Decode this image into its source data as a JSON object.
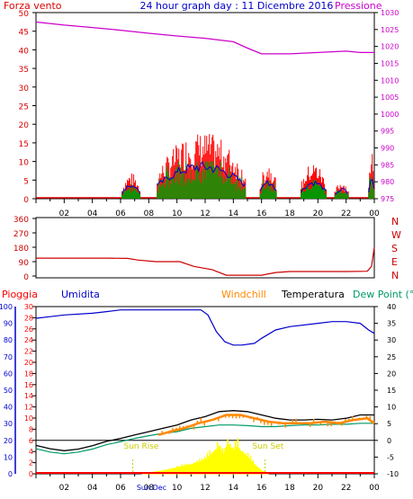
{
  "title": "24 hour graph day : 11 Dicembre 2016",
  "colors": {
    "wind": "#dd0000",
    "gust": "#ff0000",
    "wind_green": "#009900",
    "wind_blue": "#0000cc",
    "pressure": "#cc00cc",
    "direction": "#cc0000",
    "humidity": "#0000cc",
    "windchill": "#ff8800",
    "temperature": "#000000",
    "dewpoint": "#009966",
    "rain": "#ff0000",
    "solar": "#ffff00",
    "sun_label": "#cccc00",
    "grid": "#cccccc",
    "frame": "#000000"
  },
  "x_ticks": [
    "02",
    "04",
    "06",
    "08",
    "10",
    "12",
    "14",
    "16",
    "18",
    "20",
    "22",
    "00"
  ],
  "x_date_label": "Sun Dec",
  "chart_data": [
    {
      "type": "bar",
      "name": "wind",
      "legend_left": "Forza vento",
      "legend_right": "Pressione",
      "y_left_ticks": [
        "50",
        "45",
        "40",
        "35",
        "30",
        "25",
        "20",
        "15",
        "10",
        "5",
        "0"
      ],
      "y_right_ticks": [
        "1030",
        "1025",
        "1020",
        "1015",
        "1010",
        "1005",
        "1000",
        "995",
        "990",
        "985",
        "980",
        "975"
      ],
      "y_left_range": [
        0,
        50
      ],
      "y_right_range": [
        975,
        1030
      ],
      "pressure": {
        "x_hours": [
          0,
          2,
          4,
          6,
          8,
          10,
          12,
          14,
          15,
          16,
          18,
          20,
          22,
          23,
          24
        ],
        "values": [
          1027.2,
          1026.3,
          1025.6,
          1024.8,
          1023.9,
          1023.1,
          1022.4,
          1021.4,
          1019.5,
          1017.8,
          1017.8,
          1018.2,
          1018.6,
          1018.2,
          1018.2
        ]
      },
      "wind_segments": [
        {
          "start": 6.1,
          "end": 7.4,
          "gust_max": 7,
          "avg_max": 4
        },
        {
          "start": 8.6,
          "end": 14.9,
          "gust_max": 18,
          "avg_max": 10
        },
        {
          "start": 15.9,
          "end": 17.1,
          "gust_max": 10,
          "avg_max": 5
        },
        {
          "start": 18.8,
          "end": 20.6,
          "gust_max": 10,
          "avg_max": 5
        },
        {
          "start": 21.2,
          "end": 22.2,
          "gust_max": 5,
          "avg_max": 3
        },
        {
          "start": 23.6,
          "end": 24.0,
          "gust_max": 16,
          "avg_max": 6
        }
      ]
    },
    {
      "type": "line",
      "name": "wind-direction",
      "y_ticks": [
        "360",
        "270",
        "180",
        "90",
        "0"
      ],
      "y_range": [
        0,
        360
      ],
      "compass": [
        "N",
        "W",
        "S",
        "E",
        "N"
      ],
      "x_hours": [
        0,
        5,
        6.5,
        7.2,
        8.5,
        10.2,
        11.2,
        12.5,
        13.5,
        14.5,
        16,
        17,
        18,
        20,
        22,
        23.5,
        23.8,
        24
      ],
      "values": [
        112,
        112,
        110,
        100,
        90,
        90,
        60,
        40,
        5,
        5,
        5,
        22,
        28,
        28,
        28,
        30,
        60,
        180
      ]
    },
    {
      "type": "line",
      "name": "weather",
      "legend": {
        "rain": "Pioggia",
        "humidity": "Umidita",
        "windchill": "Windchill",
        "temperature": "Temperatura",
        "dewpoint": "Dew Point (°C"
      },
      "y_humidity_ticks": [
        "100",
        "90",
        "80",
        "70",
        "60",
        "50",
        "40",
        "30",
        "20",
        "10",
        "0"
      ],
      "y_rain_ticks": [
        "30",
        "28",
        "26",
        "24",
        "22",
        "20",
        "18",
        "16",
        "14",
        "12",
        "10",
        "8",
        "6",
        "4",
        "2",
        "0"
      ],
      "y_temp_ticks": [
        "40",
        "35",
        "30",
        "25",
        "20",
        "15",
        "10",
        "5",
        "0",
        "-5",
        "-10"
      ],
      "sun_rise_label": "Sun Rise",
      "sun_set_label": "Sun Set",
      "sun_rise_hour": 7.5,
      "sun_set_hour": 16.5,
      "humidity": {
        "x_hours": [
          0,
          1,
          2,
          4,
          5,
          6,
          7,
          8,
          9,
          10,
          11,
          11.7,
          12.2,
          12.8,
          13.4,
          14,
          14.6,
          15.5,
          16,
          17,
          18,
          20,
          21,
          22,
          23,
          23.6,
          24
        ],
        "values": [
          93,
          94,
          95,
          96,
          97,
          98,
          98,
          98,
          98,
          98,
          98,
          98,
          95,
          85,
          79,
          77,
          77,
          78,
          81,
          86,
          88,
          90,
          91,
          91,
          90,
          86,
          84
        ]
      },
      "temperature": {
        "x_hours": [
          0,
          1,
          2,
          3,
          4,
          5,
          6,
          7,
          8,
          9,
          10,
          11,
          12,
          13,
          14,
          15,
          16,
          17,
          18,
          19,
          20,
          21,
          22,
          23,
          24
        ],
        "values": [
          -1.5,
          -2.5,
          -3.1,
          -2.6,
          -1.6,
          -0.3,
          0.6,
          1.6,
          2.6,
          3.6,
          4.6,
          6.1,
          7.1,
          8.6,
          8.9,
          8.6,
          7.6,
          6.6,
          6.1,
          6.1,
          6.3,
          6.1,
          6.6,
          7.6,
          7.6
        ]
      },
      "windchill": {
        "x_hours": [
          8.7,
          9.5,
          10.5,
          11.5,
          12.5,
          13.5,
          14.5,
          15.5,
          16.5,
          17.5,
          18.5,
          19.5,
          20.5,
          21.5,
          22.5,
          23.5,
          24
        ],
        "values": [
          1.6,
          2.6,
          3.6,
          5.1,
          6.1,
          7.6,
          7.6,
          6.6,
          5.6,
          5.1,
          5.1,
          5.1,
          5.6,
          5.1,
          6.1,
          6.6,
          5.1
        ]
      },
      "dewpoint": {
        "x_hours": [
          0,
          1,
          2,
          3,
          4,
          5,
          6,
          7,
          8,
          9,
          10,
          11,
          12,
          13,
          14,
          15,
          16,
          17,
          18,
          19,
          20,
          21,
          22,
          23,
          24
        ],
        "values": [
          -2.5,
          -3.5,
          -4.0,
          -3.5,
          -2.6,
          -1.3,
          -0.4,
          0.6,
          1.4,
          2.1,
          2.6,
          3.6,
          4.1,
          4.6,
          4.6,
          4.4,
          4.1,
          4.1,
          4.4,
          4.6,
          4.6,
          4.8,
          4.8,
          5.1,
          5.1
        ]
      },
      "solar": {
        "x_hours": [
          7.5,
          9,
          10,
          11,
          12,
          12.5,
          13,
          13.3,
          13.6,
          14,
          14.3,
          14.6,
          15,
          15.5,
          16,
          16.5
        ],
        "values": [
          0,
          2,
          4,
          6,
          9,
          13,
          18,
          12,
          20,
          15,
          18,
          14,
          11,
          6,
          2,
          0
        ]
      },
      "rain_value": 0
    }
  ]
}
